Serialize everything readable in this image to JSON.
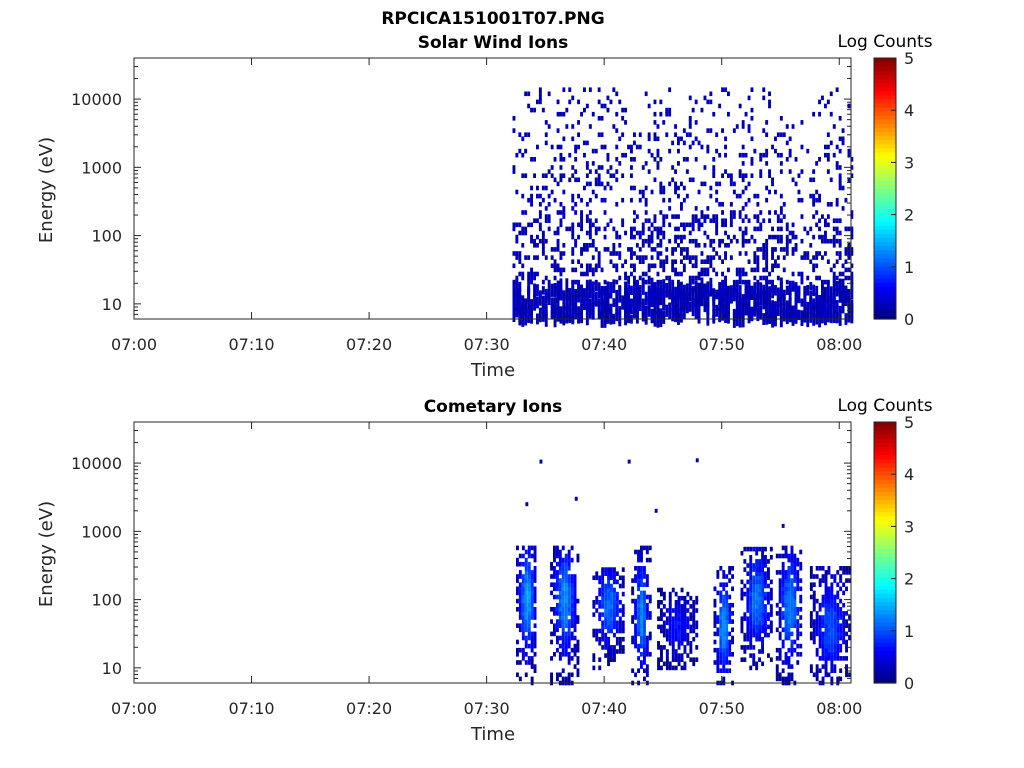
{
  "figure_title": "RPCICA151001T07.PNG",
  "chart_data": [
    {
      "type": "heatmap",
      "title": "Solar Wind Ions",
      "xlabel": "Time",
      "ylabel": "Energy (eV)",
      "x_ticks": [
        "07:00",
        "07:10",
        "07:20",
        "07:30",
        "07:40",
        "07:50",
        "08:00"
      ],
      "x_range_minutes": [
        0,
        61
      ],
      "y_ticks": [
        "10",
        "100",
        "1000",
        "10000"
      ],
      "y_scale": "log",
      "y_range": [
        6,
        40000
      ],
      "colorbar_label": "Log Counts",
      "colorbar_ticks": [
        "0",
        "1",
        "2",
        "3",
        "4",
        "5"
      ],
      "colorbar_range": [
        0,
        5
      ],
      "colormap": "jet",
      "data_start_minute": 32.2,
      "bands": [
        {
          "start": 32.2,
          "end": 61,
          "e_min": 6,
          "e_max": 15000,
          "density": "scattered",
          "log_counts": 0
        }
      ]
    },
    {
      "type": "heatmap",
      "title": "Cometary Ions",
      "xlabel": "Time",
      "ylabel": "Energy (eV)",
      "x_ticks": [
        "07:00",
        "07:10",
        "07:20",
        "07:30",
        "07:40",
        "07:50",
        "08:00"
      ],
      "x_range_minutes": [
        0,
        61
      ],
      "y_ticks": [
        "10",
        "100",
        "1000",
        "10000"
      ],
      "y_scale": "log",
      "y_range": [
        6,
        40000
      ],
      "colorbar_label": "Log Counts",
      "colorbar_ticks": [
        "0",
        "1",
        "2",
        "3",
        "4",
        "5"
      ],
      "colorbar_range": [
        0,
        5
      ],
      "colormap": "jet",
      "bursts": [
        {
          "t_start": 32.5,
          "t_end": 34.2,
          "e_min": 6,
          "e_max": 600,
          "peak_e": 100,
          "peak_log_counts": 1.4
        },
        {
          "t_start": 35.4,
          "t_end": 37.7,
          "e_min": 6,
          "e_max": 600,
          "peak_e": 100,
          "peak_log_counts": 1.3
        },
        {
          "t_start": 39.0,
          "t_end": 41.6,
          "e_min": 10,
          "e_max": 300,
          "peak_e": 80,
          "peak_log_counts": 1.2
        },
        {
          "t_start": 42.3,
          "t_end": 43.8,
          "e_min": 6,
          "e_max": 600,
          "peak_e": 60,
          "peak_log_counts": 1.3
        },
        {
          "t_start": 44.5,
          "t_end": 47.8,
          "e_min": 10,
          "e_max": 150,
          "peak_e": 40,
          "peak_log_counts": 0.7
        },
        {
          "t_start": 49.3,
          "t_end": 50.8,
          "e_min": 6,
          "e_max": 300,
          "peak_e": 40,
          "peak_log_counts": 1.4
        },
        {
          "t_start": 51.6,
          "t_end": 54.2,
          "e_min": 10,
          "e_max": 600,
          "peak_e": 100,
          "peak_log_counts": 1.2
        },
        {
          "t_start": 54.6,
          "t_end": 56.8,
          "e_min": 6,
          "e_max": 600,
          "peak_e": 80,
          "peak_log_counts": 1.3
        },
        {
          "t_start": 57.5,
          "t_end": 60.8,
          "e_min": 6,
          "e_max": 300,
          "peak_e": 40,
          "peak_log_counts": 1.0
        }
      ]
    }
  ]
}
